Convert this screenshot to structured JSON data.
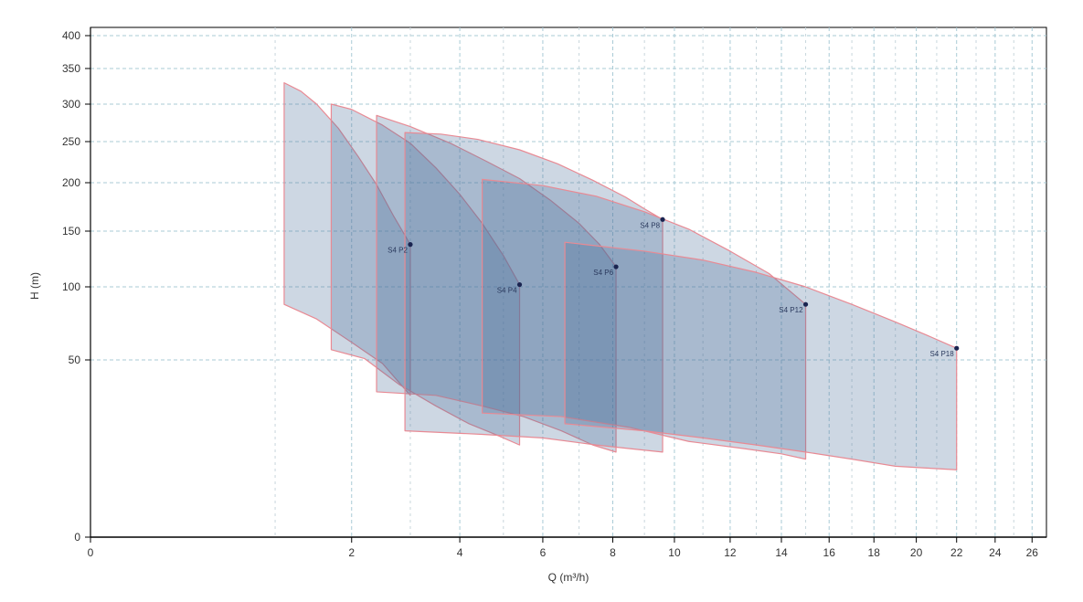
{
  "chart_data": {
    "type": "area",
    "title": "",
    "xlabel": "Q (m³/h)",
    "ylabel": "H (m)",
    "x_axis": {
      "scale": "sqrt",
      "domain": [
        0,
        26.8
      ],
      "ticks": [
        0,
        2,
        4,
        6,
        8,
        10,
        12,
        14,
        16,
        18,
        20,
        22,
        24,
        26
      ],
      "tick_labels": [
        "0",
        "2",
        "4",
        "6",
        "8",
        "10",
        "12",
        "14",
        "16",
        "18",
        "20",
        "22",
        "24",
        "26"
      ]
    },
    "y_axis": {
      "scale": "log-like",
      "ticks": [
        0,
        50,
        100,
        150,
        200,
        250,
        300,
        350,
        400
      ],
      "tick_labels": [
        "0",
        "50",
        "100",
        "150",
        "200",
        "250",
        "300",
        "350",
        "400"
      ],
      "domain": [
        0,
        420
      ]
    },
    "grid": true,
    "series": [
      {
        "name": "S4 P2",
        "q_min": 1.1,
        "q_max": 3.0,
        "upper": [
          [
            1.1,
            330
          ],
          [
            1.3,
            318
          ],
          [
            1.5,
            300
          ],
          [
            1.8,
            268
          ],
          [
            2.1,
            232
          ],
          [
            2.4,
            198
          ],
          [
            2.7,
            165
          ],
          [
            3.0,
            138
          ]
        ],
        "lower": [
          [
            1.1,
            88
          ],
          [
            1.5,
            78
          ],
          [
            2.0,
            62
          ],
          [
            2.5,
            49
          ],
          [
            3.0,
            40
          ]
        ],
        "point": [
          3.0,
          138
        ]
      },
      {
        "name": "S4 P4",
        "q_min": 1.7,
        "q_max": 5.4,
        "upper": [
          [
            1.7,
            300
          ],
          [
            2.0,
            293
          ],
          [
            2.5,
            272
          ],
          [
            3.0,
            248
          ],
          [
            3.5,
            218
          ],
          [
            4.0,
            188
          ],
          [
            4.5,
            158
          ],
          [
            5.0,
            128
          ],
          [
            5.4,
            102
          ]
        ],
        "lower": [
          [
            1.7,
            57
          ],
          [
            2.2,
            51
          ],
          [
            2.8,
            43
          ],
          [
            3.5,
            37
          ],
          [
            4.2,
            32
          ],
          [
            4.8,
            29
          ],
          [
            5.4,
            26
          ]
        ],
        "point": [
          5.4,
          102
        ]
      },
      {
        "name": "S4 P6",
        "q_min": 2.4,
        "q_max": 8.1,
        "upper": [
          [
            2.4,
            285
          ],
          [
            3.0,
            270
          ],
          [
            3.8,
            248
          ],
          [
            4.6,
            226
          ],
          [
            5.4,
            205
          ],
          [
            6.2,
            182
          ],
          [
            7.0,
            158
          ],
          [
            7.6,
            138
          ],
          [
            8.1,
            118
          ]
        ],
        "lower": [
          [
            2.4,
            41
          ],
          [
            3.5,
            40
          ],
          [
            4.5,
            37
          ],
          [
            5.5,
            34
          ],
          [
            6.5,
            30
          ],
          [
            7.4,
            26
          ],
          [
            8.1,
            24
          ]
        ],
        "point": [
          8.1,
          118
        ]
      },
      {
        "name": "S4 P8",
        "q_min": 2.9,
        "q_max": 9.6,
        "upper": [
          [
            2.9,
            262
          ],
          [
            3.6,
            260
          ],
          [
            4.4,
            253
          ],
          [
            5.4,
            240
          ],
          [
            6.4,
            223
          ],
          [
            7.4,
            203
          ],
          [
            8.4,
            185
          ],
          [
            9.0,
            173
          ],
          [
            9.6,
            162
          ]
        ],
        "lower": [
          [
            2.9,
            30
          ],
          [
            4.5,
            29
          ],
          [
            6.0,
            28
          ],
          [
            7.5,
            26
          ],
          [
            8.5,
            25
          ],
          [
            9.6,
            24
          ]
        ],
        "point": [
          9.6,
          162
        ]
      },
      {
        "name": "S4 P12",
        "q_min": 4.5,
        "q_max": 15.0,
        "upper": [
          [
            4.5,
            204
          ],
          [
            6.0,
            197
          ],
          [
            7.5,
            186
          ],
          [
            9.0,
            170
          ],
          [
            10.5,
            152
          ],
          [
            12.0,
            132
          ],
          [
            13.5,
            112
          ],
          [
            15.0,
            88
          ]
        ],
        "lower": [
          [
            4.5,
            35
          ],
          [
            6.5,
            34
          ],
          [
            8.5,
            31
          ],
          [
            10.5,
            27
          ],
          [
            12.5,
            25
          ],
          [
            14.0,
            23.5
          ],
          [
            15.0,
            22
          ]
        ],
        "point": [
          15.0,
          88
        ]
      },
      {
        "name": "S4 P18",
        "q_min": 6.6,
        "q_max": 22.0,
        "upper": [
          [
            6.6,
            140
          ],
          [
            9.0,
            132
          ],
          [
            11.0,
            124
          ],
          [
            13.0,
            113
          ],
          [
            15.0,
            100
          ],
          [
            17.0,
            88
          ],
          [
            19.0,
            76
          ],
          [
            20.5,
            67
          ],
          [
            22.0,
            58
          ]
        ],
        "lower": [
          [
            6.6,
            32
          ],
          [
            9.0,
            30
          ],
          [
            11.0,
            28
          ],
          [
            13.0,
            26
          ],
          [
            15.0,
            24
          ],
          [
            17.0,
            22
          ],
          [
            19.0,
            20
          ],
          [
            20.5,
            19.5
          ],
          [
            22.0,
            19
          ]
        ],
        "point": [
          22.0,
          58
        ]
      }
    ],
    "colors": {
      "fill": "#4a6f9c",
      "fill_opacity": 0.28,
      "stroke": "#e88a94",
      "point": "#1a2450",
      "grid_h": "#a9cbd6",
      "grid_v_major": "#a9cbd6",
      "axis": "#000000"
    }
  }
}
